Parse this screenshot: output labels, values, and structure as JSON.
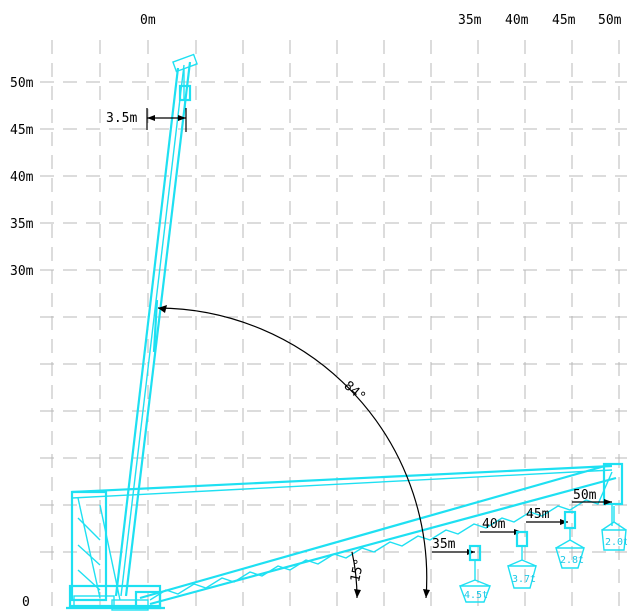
{
  "x_axis_labels": [
    "0m",
    "35m",
    "40m",
    "45m",
    "50m"
  ],
  "y_axis_labels": [
    "50m",
    "45m",
    "40m",
    "35m",
    "30m",
    "0"
  ],
  "dimension_offset": "3.5m",
  "angle_high": "84°",
  "angle_low": "15°",
  "load_points": [
    {
      "radius": "35m",
      "load": "4.5t"
    },
    {
      "radius": "40m",
      "load": "3.7t"
    },
    {
      "radius": "45m",
      "load": "2.8t"
    },
    {
      "radius": "50m",
      "load": "2.0t"
    }
  ],
  "colors": {
    "boom": "#1ee0f2",
    "grid": "#b8b8b8",
    "annotation": "#000000"
  }
}
